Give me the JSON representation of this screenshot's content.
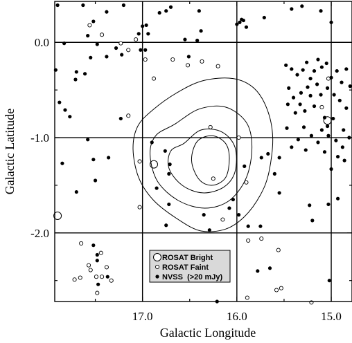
{
  "chart_data": {
    "type": "scatter",
    "xlabel": "Galactic Longitude",
    "ylabel": "Galactic Latitude",
    "xlim": [
      17.93,
      14.78
    ],
    "ylim": [
      -2.72,
      0.43
    ],
    "x_ticks": [
      17.0,
      16.0,
      15.0
    ],
    "x_tick_labels": [
      "17.0",
      "16.0",
      "15.0"
    ],
    "y_ticks": [
      0.0,
      -1.0,
      -2.0
    ],
    "y_tick_labels": [
      "0.0",
      "-1.0",
      "-2.0"
    ],
    "grid": true,
    "legend_position": "bottom-center",
    "legend": [
      {
        "label": "ROSAT Bright",
        "marker": "large-open-circle"
      },
      {
        "label": "ROSAT Faint",
        "marker": "small-open-circle"
      },
      {
        "label": "NVSS  (>20 mJy)",
        "marker": "filled-dot"
      }
    ],
    "series": [
      {
        "name": "ROSAT Bright",
        "points": [
          [
            17.9,
            -1.82
          ],
          [
            15.04,
            -0.82
          ],
          [
            16.88,
            -1.28
          ]
        ]
      },
      {
        "name": "ROSAT Faint",
        "points": [
          [
            17.56,
            0.18
          ],
          [
            17.43,
            0.08
          ],
          [
            17.23,
            -0.01
          ],
          [
            17.15,
            -0.08
          ],
          [
            17.07,
            0.03
          ],
          [
            16.97,
            -0.18
          ],
          [
            16.88,
            -0.38
          ],
          [
            16.68,
            -0.18
          ],
          [
            16.52,
            -0.24
          ],
          [
            16.37,
            -0.2
          ],
          [
            16.2,
            -0.25
          ],
          [
            17.15,
            -0.77
          ],
          [
            17.03,
            -1.25
          ],
          [
            16.28,
            -0.89
          ],
          [
            15.98,
            -1.0
          ],
          [
            15.9,
            -1.47
          ],
          [
            16.25,
            -1.43
          ],
          [
            17.03,
            -1.73
          ],
          [
            16.15,
            -1.86
          ],
          [
            15.88,
            -2.08
          ],
          [
            15.74,
            -2.06
          ],
          [
            15.56,
            -2.18
          ],
          [
            17.65,
            -2.11
          ],
          [
            17.44,
            -2.21
          ],
          [
            17.57,
            -2.34
          ],
          [
            17.55,
            -2.39
          ],
          [
            17.66,
            -2.47
          ],
          [
            17.72,
            -2.49
          ],
          [
            17.38,
            -2.36
          ],
          [
            17.43,
            -2.46
          ],
          [
            17.49,
            -2.46
          ],
          [
            17.33,
            -2.5
          ],
          [
            17.48,
            -2.63
          ],
          [
            15.58,
            -2.6
          ],
          [
            15.53,
            -2.58
          ],
          [
            15.89,
            -2.68
          ],
          [
            15.21,
            -2.73
          ],
          [
            15.03,
            -0.38
          ],
          [
            15.1,
            -0.68
          ]
        ]
      },
      {
        "name": "NVSS  (>20 mJy)",
        "points": [
          [
            17.9,
            0.39
          ],
          [
            17.63,
            0.39
          ],
          [
            17.38,
            0.32
          ],
          [
            17.2,
            0.39
          ],
          [
            17.52,
            0.22
          ],
          [
            16.75,
            0.33
          ],
          [
            16.7,
            0.37
          ],
          [
            16.82,
            0.31
          ],
          [
            16.4,
            0.33
          ],
          [
            15.95,
            0.24
          ],
          [
            15.9,
            0.16
          ],
          [
            15.71,
            0.26
          ],
          [
            15.42,
            0.35
          ],
          [
            15.31,
            0.38
          ],
          [
            15.11,
            0.33
          ],
          [
            15.0,
            0.21
          ],
          [
            16.0,
            0.19
          ],
          [
            15.97,
            0.21
          ],
          [
            15.93,
            0.23
          ],
          [
            16.42,
            0.02
          ],
          [
            16.38,
            0.12
          ],
          [
            17.0,
            0.17
          ],
          [
            16.96,
            0.18
          ],
          [
            17.04,
            0.09
          ],
          [
            16.94,
            0.09
          ],
          [
            16.55,
            0.03
          ],
          [
            17.83,
            -0.01
          ],
          [
            17.58,
            0.07
          ],
          [
            17.48,
            -0.02
          ],
          [
            17.55,
            -0.16
          ],
          [
            17.28,
            -0.06
          ],
          [
            17.22,
            -0.13
          ],
          [
            17.38,
            -0.15
          ],
          [
            17.02,
            -0.08
          ],
          [
            16.97,
            -0.08
          ],
          [
            16.51,
            -0.15
          ],
          [
            17.92,
            -0.29
          ],
          [
            17.7,
            -0.31
          ],
          [
            17.71,
            -0.39
          ],
          [
            17.61,
            -0.33
          ],
          [
            17.88,
            -0.63
          ],
          [
            17.82,
            -0.71
          ],
          [
            17.77,
            -0.78
          ],
          [
            17.23,
            -0.8
          ],
          [
            17.85,
            -1.27
          ],
          [
            17.52,
            -1.23
          ],
          [
            17.5,
            -1.45
          ],
          [
            17.36,
            -1.21
          ],
          [
            17.58,
            -1.02
          ],
          [
            17.7,
            -1.57
          ],
          [
            16.9,
            -1.05
          ],
          [
            16.76,
            -1.14
          ],
          [
            16.71,
            -1.28
          ],
          [
            16.72,
            -1.38
          ],
          [
            16.85,
            -1.53
          ],
          [
            16.72,
            -1.7
          ],
          [
            16.75,
            -1.92
          ],
          [
            16.35,
            -1.81
          ],
          [
            16.29,
            -1.97
          ],
          [
            16.08,
            -1.74
          ],
          [
            16.04,
            -1.65
          ],
          [
            15.98,
            -1.81
          ],
          [
            15.88,
            -1.93
          ],
          [
            15.75,
            -1.93
          ],
          [
            15.92,
            -1.3
          ],
          [
            16.39,
            -2.21
          ],
          [
            15.55,
            -1.21
          ],
          [
            15.6,
            -1.38
          ],
          [
            15.55,
            -1.58
          ],
          [
            15.67,
            -1.17
          ],
          [
            15.74,
            -1.21
          ],
          [
            15.2,
            -1.87
          ],
          [
            15.23,
            -1.71
          ],
          [
            15.03,
            -1.7
          ],
          [
            14.93,
            -1.64
          ],
          [
            15.07,
            -1.15
          ],
          [
            15.0,
            -1.33
          ],
          [
            17.52,
            -2.13
          ],
          [
            17.48,
            -2.23
          ],
          [
            17.48,
            -2.29
          ],
          [
            17.37,
            -2.46
          ],
          [
            17.47,
            -2.54
          ],
          [
            15.65,
            -2.37
          ],
          [
            15.78,
            -2.4
          ],
          [
            15.02,
            -2.5
          ],
          [
            16.21,
            -2.72
          ],
          [
            15.48,
            -0.24
          ],
          [
            15.42,
            -0.28
          ],
          [
            15.36,
            -0.34
          ],
          [
            15.3,
            -0.29
          ],
          [
            15.26,
            -0.21
          ],
          [
            15.22,
            -0.38
          ],
          [
            15.18,
            -0.3
          ],
          [
            15.1,
            -0.26
          ],
          [
            15.05,
            -0.22
          ],
          [
            15.0,
            -0.37
          ],
          [
            14.94,
            -0.3
          ],
          [
            14.89,
            -0.42
          ],
          [
            14.84,
            -0.28
          ],
          [
            14.8,
            -0.46
          ],
          [
            15.15,
            -0.44
          ],
          [
            15.25,
            -0.47
          ],
          [
            15.32,
            -0.53
          ],
          [
            15.4,
            -0.58
          ],
          [
            15.11,
            -0.55
          ],
          [
            15.04,
            -0.48
          ],
          [
            14.97,
            -0.55
          ],
          [
            14.91,
            -0.61
          ],
          [
            14.84,
            -0.69
          ],
          [
            15.18,
            -0.67
          ],
          [
            15.28,
            -0.72
          ],
          [
            15.07,
            -0.79
          ],
          [
            14.98,
            -0.8
          ],
          [
            15.46,
            -0.65
          ],
          [
            15.38,
            -0.74
          ],
          [
            15.1,
            -0.92
          ],
          [
            15.03,
            -0.98
          ],
          [
            14.95,
            -1.03
          ],
          [
            14.88,
            -1.1
          ],
          [
            14.81,
            -1.0
          ],
          [
            15.14,
            -1.05
          ],
          [
            15.21,
            -0.98
          ],
          [
            15.29,
            -0.89
          ],
          [
            15.35,
            -1.02
          ],
          [
            15.42,
            -1.1
          ],
          [
            15.47,
            -0.9
          ],
          [
            14.86,
            -1.24
          ],
          [
            14.93,
            -1.2
          ],
          [
            15.22,
            -0.56
          ],
          [
            15.33,
            -0.65
          ],
          [
            15.45,
            -0.48
          ],
          [
            15.14,
            -0.18
          ],
          [
            14.87,
            -0.92
          ],
          [
            15.27,
            -1.13
          ],
          [
            15.04,
            -0.88
          ]
        ]
      }
    ],
    "contours": [
      [
        [
          16.88,
          -0.7
        ],
        [
          16.62,
          -0.52
        ],
        [
          16.35,
          -0.4
        ],
        [
          16.04,
          -0.38
        ],
        [
          15.82,
          -0.48
        ],
        [
          15.68,
          -0.7
        ],
        [
          15.62,
          -1.0
        ],
        [
          15.66,
          -1.36
        ],
        [
          15.75,
          -1.6
        ],
        [
          15.92,
          -1.83
        ],
        [
          16.12,
          -1.96
        ],
        [
          16.38,
          -1.98
        ],
        [
          16.62,
          -1.86
        ],
        [
          16.88,
          -1.66
        ],
        [
          17.04,
          -1.42
        ],
        [
          17.1,
          -1.12
        ],
        [
          17.05,
          -0.88
        ]
      ],
      [
        [
          16.66,
          -0.86
        ],
        [
          16.4,
          -0.7
        ],
        [
          16.12,
          -0.68
        ],
        [
          15.9,
          -0.84
        ],
        [
          15.84,
          -1.1
        ],
        [
          15.9,
          -1.42
        ],
        [
          16.08,
          -1.66
        ],
        [
          16.34,
          -1.74
        ],
        [
          16.62,
          -1.66
        ],
        [
          16.84,
          -1.46
        ],
        [
          16.92,
          -1.18
        ],
        [
          16.86,
          -0.98
        ]
      ],
      [
        [
          16.56,
          -1.06
        ],
        [
          16.38,
          -0.92
        ],
        [
          16.16,
          -0.94
        ],
        [
          16.02,
          -1.1
        ],
        [
          16.02,
          -1.36
        ],
        [
          16.14,
          -1.52
        ],
        [
          16.36,
          -1.58
        ],
        [
          16.58,
          -1.5
        ],
        [
          16.72,
          -1.32
        ],
        [
          16.7,
          -1.14
        ]
      ],
      [
        [
          16.42,
          -1.04
        ],
        [
          16.26,
          -0.98
        ],
        [
          16.12,
          -1.06
        ],
        [
          16.08,
          -1.22
        ],
        [
          16.12,
          -1.42
        ],
        [
          16.26,
          -1.5
        ],
        [
          16.4,
          -1.44
        ],
        [
          16.48,
          -1.24
        ]
      ]
    ]
  }
}
